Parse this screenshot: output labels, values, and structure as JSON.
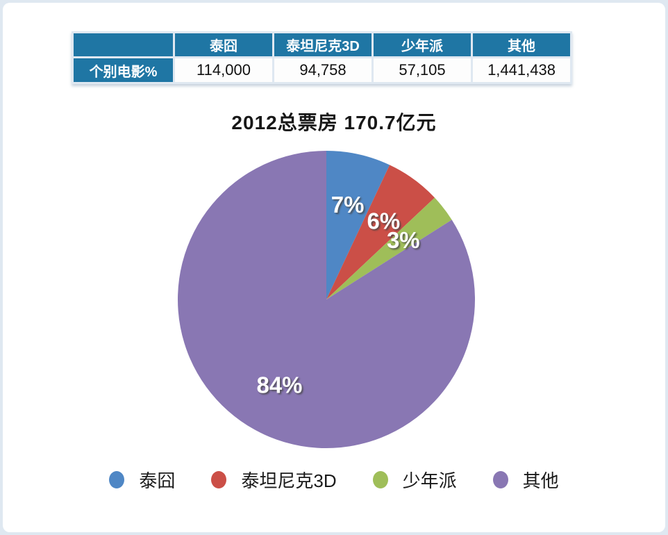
{
  "page": {
    "background": "#dfe8f1",
    "card_background": "#ffffff"
  },
  "table": {
    "corner_label": "",
    "row_label": "个别电影%",
    "headers": [
      "泰囧",
      "泰坦尼克3D",
      "少年派",
      "其他"
    ],
    "values": [
      "114,000",
      "94,758",
      "57,105",
      "1,441,438"
    ],
    "header_bg": "#1f76a4",
    "header_text": "#ffffff",
    "cell_bg": "#fdfdfd"
  },
  "chart_data": {
    "type": "pie",
    "title": "2012总票房 170.7亿元",
    "categories": [
      "泰囧",
      "泰坦尼克3D",
      "少年派",
      "其他"
    ],
    "values": [
      7,
      6,
      3,
      84
    ],
    "unit": "percent",
    "labels": [
      "7%",
      "6%",
      "3%",
      "84%"
    ],
    "colors": [
      "#4f87c5",
      "#cb4f47",
      "#9fbe59",
      "#8977b3"
    ],
    "start_angle_deg": 0,
    "direction": "clockwise",
    "legend_position": "bottom",
    "label_radius_ratio": 0.655
  }
}
